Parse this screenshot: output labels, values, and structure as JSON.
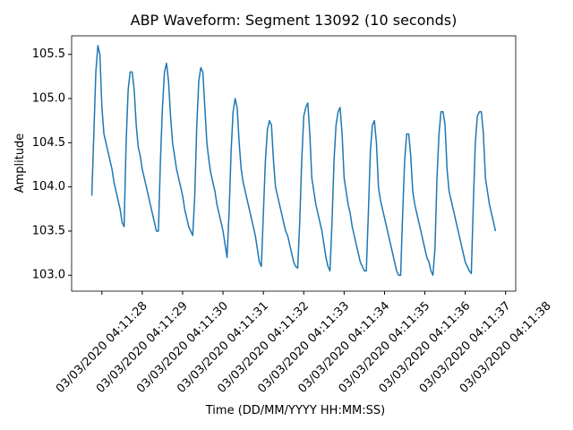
{
  "chart_data": {
    "type": "line",
    "title": "ABP Waveform: Segment 13092 (10 seconds)",
    "x_label": "Time (DD/MM/YYYY HH:MM:SS)",
    "y_label": "Amplitude",
    "x": [
      "2020-03-03T04:11:27.750",
      "2020-03-03T04:11:27.800",
      "2020-03-03T04:11:27.850",
      "2020-03-03T04:11:27.900",
      "2020-03-03T04:11:27.950",
      "2020-03-03T04:11:28.000",
      "2020-03-03T04:11:28.050",
      "2020-03-03T04:11:28.100",
      "2020-03-03T04:11:28.150",
      "2020-03-03T04:11:28.200",
      "2020-03-03T04:11:28.250",
      "2020-03-03T04:11:28.300",
      "2020-03-03T04:11:28.350",
      "2020-03-03T04:11:28.400",
      "2020-03-03T04:11:28.450",
      "2020-03-03T04:11:28.500",
      "2020-03-03T04:11:28.550",
      "2020-03-03T04:11:28.600",
      "2020-03-03T04:11:28.650",
      "2020-03-03T04:11:28.700",
      "2020-03-03T04:11:28.750",
      "2020-03-03T04:11:28.800",
      "2020-03-03T04:11:28.850",
      "2020-03-03T04:11:28.900",
      "2020-03-03T04:11:28.950",
      "2020-03-03T04:11:29.000",
      "2020-03-03T04:11:29.050",
      "2020-03-03T04:11:29.100",
      "2020-03-03T04:11:29.150",
      "2020-03-03T04:11:29.200",
      "2020-03-03T04:11:29.250",
      "2020-03-03T04:11:29.300",
      "2020-03-03T04:11:29.350",
      "2020-03-03T04:11:29.400",
      "2020-03-03T04:11:29.450",
      "2020-03-03T04:11:29.500",
      "2020-03-03T04:11:29.550",
      "2020-03-03T04:11:29.600",
      "2020-03-03T04:11:29.650",
      "2020-03-03T04:11:29.700",
      "2020-03-03T04:11:29.750",
      "2020-03-03T04:11:29.800",
      "2020-03-03T04:11:29.850",
      "2020-03-03T04:11:29.900",
      "2020-03-03T04:11:29.950",
      "2020-03-03T04:11:30.000",
      "2020-03-03T04:11:30.050",
      "2020-03-03T04:11:30.100",
      "2020-03-03T04:11:30.150",
      "2020-03-03T04:11:30.200",
      "2020-03-03T04:11:30.250",
      "2020-03-03T04:11:30.300",
      "2020-03-03T04:11:30.350",
      "2020-03-03T04:11:30.400",
      "2020-03-03T04:11:30.450",
      "2020-03-03T04:11:30.500",
      "2020-03-03T04:11:30.550",
      "2020-03-03T04:11:30.600",
      "2020-03-03T04:11:30.650",
      "2020-03-03T04:11:30.700",
      "2020-03-03T04:11:30.750",
      "2020-03-03T04:11:30.800",
      "2020-03-03T04:11:30.850",
      "2020-03-03T04:11:30.900",
      "2020-03-03T04:11:30.950",
      "2020-03-03T04:11:31.000",
      "2020-03-03T04:11:31.050",
      "2020-03-03T04:11:31.100",
      "2020-03-03T04:11:31.150",
      "2020-03-03T04:11:31.200",
      "2020-03-03T04:11:31.250",
      "2020-03-03T04:11:31.300",
      "2020-03-03T04:11:31.350",
      "2020-03-03T04:11:31.400",
      "2020-03-03T04:11:31.450",
      "2020-03-03T04:11:31.500",
      "2020-03-03T04:11:31.550",
      "2020-03-03T04:11:31.600",
      "2020-03-03T04:11:31.650",
      "2020-03-03T04:11:31.700",
      "2020-03-03T04:11:31.750",
      "2020-03-03T04:11:31.800",
      "2020-03-03T04:11:31.850",
      "2020-03-03T04:11:31.900",
      "2020-03-03T04:11:31.950",
      "2020-03-03T04:11:32.000",
      "2020-03-03T04:11:32.050",
      "2020-03-03T04:11:32.100",
      "2020-03-03T04:11:32.150",
      "2020-03-03T04:11:32.200",
      "2020-03-03T04:11:32.250",
      "2020-03-03T04:11:32.300",
      "2020-03-03T04:11:32.350",
      "2020-03-03T04:11:32.400",
      "2020-03-03T04:11:32.450",
      "2020-03-03T04:11:32.500",
      "2020-03-03T04:11:32.550",
      "2020-03-03T04:11:32.600",
      "2020-03-03T04:11:32.650",
      "2020-03-03T04:11:32.700",
      "2020-03-03T04:11:32.750",
      "2020-03-03T04:11:32.800",
      "2020-03-03T04:11:32.850",
      "2020-03-03T04:11:32.900",
      "2020-03-03T04:11:32.950",
      "2020-03-03T04:11:33.000",
      "2020-03-03T04:11:33.050",
      "2020-03-03T04:11:33.100",
      "2020-03-03T04:11:33.150",
      "2020-03-03T04:11:33.200",
      "2020-03-03T04:11:33.250",
      "2020-03-03T04:11:33.300",
      "2020-03-03T04:11:33.350",
      "2020-03-03T04:11:33.400",
      "2020-03-03T04:11:33.450",
      "2020-03-03T04:11:33.500",
      "2020-03-03T04:11:33.550",
      "2020-03-03T04:11:33.600",
      "2020-03-03T04:11:33.650",
      "2020-03-03T04:11:33.700",
      "2020-03-03T04:11:33.750",
      "2020-03-03T04:11:33.800",
      "2020-03-03T04:11:33.850",
      "2020-03-03T04:11:33.900",
      "2020-03-03T04:11:33.950",
      "2020-03-03T04:11:34.000",
      "2020-03-03T04:11:34.050",
      "2020-03-03T04:11:34.100",
      "2020-03-03T04:11:34.150",
      "2020-03-03T04:11:34.200",
      "2020-03-03T04:11:34.250",
      "2020-03-03T04:11:34.300",
      "2020-03-03T04:11:34.350",
      "2020-03-03T04:11:34.400",
      "2020-03-03T04:11:34.450",
      "2020-03-03T04:11:34.500",
      "2020-03-03T04:11:34.550",
      "2020-03-03T04:11:34.600",
      "2020-03-03T04:11:34.650",
      "2020-03-03T04:11:34.700",
      "2020-03-03T04:11:34.750",
      "2020-03-03T04:11:34.800",
      "2020-03-03T04:11:34.850",
      "2020-03-03T04:11:34.900",
      "2020-03-03T04:11:34.950",
      "2020-03-03T04:11:35.000",
      "2020-03-03T04:11:35.050",
      "2020-03-03T04:11:35.100",
      "2020-03-03T04:11:35.150",
      "2020-03-03T04:11:35.200",
      "2020-03-03T04:11:35.250",
      "2020-03-03T04:11:35.300",
      "2020-03-03T04:11:35.350",
      "2020-03-03T04:11:35.400",
      "2020-03-03T04:11:35.450",
      "2020-03-03T04:11:35.500",
      "2020-03-03T04:11:35.550",
      "2020-03-03T04:11:35.600",
      "2020-03-03T04:11:35.650",
      "2020-03-03T04:11:35.700",
      "2020-03-03T04:11:35.750",
      "2020-03-03T04:11:35.800",
      "2020-03-03T04:11:35.850",
      "2020-03-03T04:11:35.900",
      "2020-03-03T04:11:35.950",
      "2020-03-03T04:11:36.000",
      "2020-03-03T04:11:36.050",
      "2020-03-03T04:11:36.100",
      "2020-03-03T04:11:36.150",
      "2020-03-03T04:11:36.200",
      "2020-03-03T04:11:36.250",
      "2020-03-03T04:11:36.300",
      "2020-03-03T04:11:36.350",
      "2020-03-03T04:11:36.400",
      "2020-03-03T04:11:36.450",
      "2020-03-03T04:11:36.500",
      "2020-03-03T04:11:36.550",
      "2020-03-03T04:11:36.600",
      "2020-03-03T04:11:36.650",
      "2020-03-03T04:11:36.700",
      "2020-03-03T04:11:36.750",
      "2020-03-03T04:11:36.800",
      "2020-03-03T04:11:36.850",
      "2020-03-03T04:11:36.900",
      "2020-03-03T04:11:36.950",
      "2020-03-03T04:11:37.000",
      "2020-03-03T04:11:37.050",
      "2020-03-03T04:11:37.100",
      "2020-03-03T04:11:37.150",
      "2020-03-03T04:11:37.200",
      "2020-03-03T04:11:37.250",
      "2020-03-03T04:11:37.300",
      "2020-03-03T04:11:37.350",
      "2020-03-03T04:11:37.400",
      "2020-03-03T04:11:37.450",
      "2020-03-03T04:11:37.500",
      "2020-03-03T04:11:37.550",
      "2020-03-03T04:11:37.600",
      "2020-03-03T04:11:37.650",
      "2020-03-03T04:11:37.700",
      "2020-03-03T04:11:37.750"
    ],
    "series": [
      {
        "color": "#1f77b4",
        "values": [
          103.9,
          104.6,
          105.3,
          105.6,
          105.5,
          104.9,
          104.6,
          104.5,
          104.4,
          104.3,
          104.2,
          104.05,
          103.95,
          103.85,
          103.75,
          103.6,
          103.55,
          104.5,
          105.1,
          105.3,
          105.3,
          105.1,
          104.7,
          104.45,
          104.35,
          104.2,
          104.1,
          104.0,
          103.9,
          103.8,
          103.7,
          103.6,
          103.5,
          103.5,
          104.3,
          104.9,
          105.3,
          105.4,
          105.2,
          104.8,
          104.5,
          104.35,
          104.2,
          104.1,
          104.0,
          103.9,
          103.75,
          103.65,
          103.55,
          103.5,
          103.45,
          103.9,
          104.7,
          105.2,
          105.35,
          105.3,
          104.9,
          104.5,
          104.3,
          104.15,
          104.05,
          103.95,
          103.8,
          103.7,
          103.6,
          103.5,
          103.35,
          103.2,
          103.7,
          104.4,
          104.85,
          105.0,
          104.9,
          104.5,
          104.2,
          104.05,
          103.95,
          103.85,
          103.75,
          103.65,
          103.55,
          103.45,
          103.3,
          103.15,
          103.1,
          103.7,
          104.3,
          104.65,
          104.75,
          104.7,
          104.3,
          104.0,
          103.9,
          103.8,
          103.7,
          103.6,
          103.5,
          103.45,
          103.35,
          103.25,
          103.15,
          103.1,
          103.08,
          103.6,
          104.3,
          104.8,
          104.9,
          104.95,
          104.6,
          104.1,
          103.95,
          103.8,
          103.7,
          103.6,
          103.5,
          103.35,
          103.2,
          103.1,
          103.05,
          103.6,
          104.3,
          104.7,
          104.85,
          104.9,
          104.6,
          104.1,
          103.95,
          103.8,
          103.7,
          103.55,
          103.45,
          103.35,
          103.25,
          103.15,
          103.1,
          103.05,
          103.05,
          103.7,
          104.4,
          104.7,
          104.75,
          104.5,
          104.0,
          103.85,
          103.75,
          103.65,
          103.55,
          103.45,
          103.35,
          103.25,
          103.15,
          103.05,
          103.0,
          103.0,
          103.7,
          104.3,
          104.6,
          104.6,
          104.35,
          103.95,
          103.8,
          103.7,
          103.6,
          103.5,
          103.4,
          103.3,
          103.2,
          103.15,
          103.05,
          103.0,
          103.3,
          104.1,
          104.6,
          104.85,
          104.85,
          104.7,
          104.2,
          103.95,
          103.85,
          103.75,
          103.65,
          103.55,
          103.45,
          103.35,
          103.25,
          103.15,
          103.1,
          103.05,
          103.02,
          103.8,
          104.5,
          104.8,
          104.85,
          104.85,
          104.6,
          104.1,
          103.95,
          103.8,
          103.7,
          103.6,
          103.5
        ]
      }
    ],
    "xlim": [
      "2020-03-03T04:11:27.250",
      "2020-03-03T04:11:38.250"
    ],
    "xticks": [
      {
        "value": "2020-03-03T04:11:28.000",
        "label": "03/03/2020 04:11:28"
      },
      {
        "value": "2020-03-03T04:11:29.000",
        "label": "03/03/2020 04:11:29"
      },
      {
        "value": "2020-03-03T04:11:30.000",
        "label": "03/03/2020 04:11:30"
      },
      {
        "value": "2020-03-03T04:11:31.000",
        "label": "03/03/2020 04:11:31"
      },
      {
        "value": "2020-03-03T04:11:32.000",
        "label": "03/03/2020 04:11:32"
      },
      {
        "value": "2020-03-03T04:11:33.000",
        "label": "03/03/2020 04:11:33"
      },
      {
        "value": "2020-03-03T04:11:34.000",
        "label": "03/03/2020 04:11:34"
      },
      {
        "value": "2020-03-03T04:11:35.000",
        "label": "03/03/2020 04:11:35"
      },
      {
        "value": "2020-03-03T04:11:36.000",
        "label": "03/03/2020 04:11:36"
      },
      {
        "value": "2020-03-03T04:11:37.000",
        "label": "03/03/2020 04:11:37"
      },
      {
        "value": "2020-03-03T04:11:38.000",
        "label": "03/03/2020 04:11:38"
      }
    ],
    "ylim": [
      102.82,
      105.71
    ],
    "yticks": [
      {
        "value": 103,
        "label": "103.0"
      },
      103.5,
      {
        "value": 104,
        "label": "104.0"
      },
      104.5,
      {
        "value": 105,
        "label": "105.0"
      },
      105.5
    ]
  }
}
